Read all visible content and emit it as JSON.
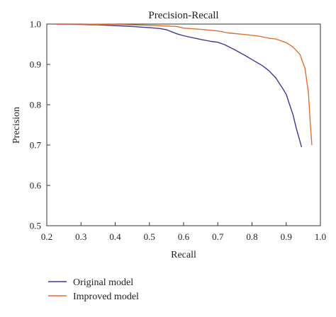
{
  "chart_data": {
    "type": "line",
    "title": "Precision-Recall",
    "xlabel": "Recall",
    "ylabel": "Precision",
    "xlim": [
      0.2,
      1.0
    ],
    "ylim": [
      0.5,
      1.0
    ],
    "xticks": [
      "0.2",
      "0.3",
      "0.4",
      "0.5",
      "0.6",
      "0.7",
      "0.8",
      "0.9",
      "1.0"
    ],
    "yticks": [
      "0.5",
      "0.6",
      "0.7",
      "0.8",
      "0.9",
      "1.0"
    ],
    "grid": false,
    "legend": "bottom-left, below plot",
    "series": [
      {
        "name": "Original model",
        "color": "#3a3a9a",
        "x": [
          0.225,
          0.3,
          0.35,
          0.4,
          0.45,
          0.5,
          0.53,
          0.55,
          0.58,
          0.6,
          0.65,
          0.68,
          0.7,
          0.72,
          0.75,
          0.78,
          0.8,
          0.83,
          0.85,
          0.87,
          0.89,
          0.9,
          0.91,
          0.92,
          0.93,
          0.945
        ],
        "y": [
          1.0,
          0.999,
          0.998,
          0.996,
          0.994,
          0.991,
          0.989,
          0.986,
          0.976,
          0.971,
          0.962,
          0.957,
          0.955,
          0.949,
          0.936,
          0.922,
          0.912,
          0.897,
          0.884,
          0.866,
          0.84,
          0.826,
          0.8,
          0.775,
          0.74,
          0.695
        ]
      },
      {
        "name": "Improved model",
        "color": "#e07030",
        "x": [
          0.225,
          0.3,
          0.4,
          0.5,
          0.58,
          0.6,
          0.65,
          0.7,
          0.73,
          0.78,
          0.82,
          0.85,
          0.87,
          0.9,
          0.92,
          0.94,
          0.955,
          0.965,
          0.97,
          0.975
        ],
        "y": [
          1.0,
          1.0,
          0.999,
          0.997,
          0.994,
          0.99,
          0.987,
          0.983,
          0.978,
          0.974,
          0.97,
          0.965,
          0.963,
          0.954,
          0.943,
          0.925,
          0.89,
          0.83,
          0.76,
          0.7
        ]
      }
    ]
  }
}
